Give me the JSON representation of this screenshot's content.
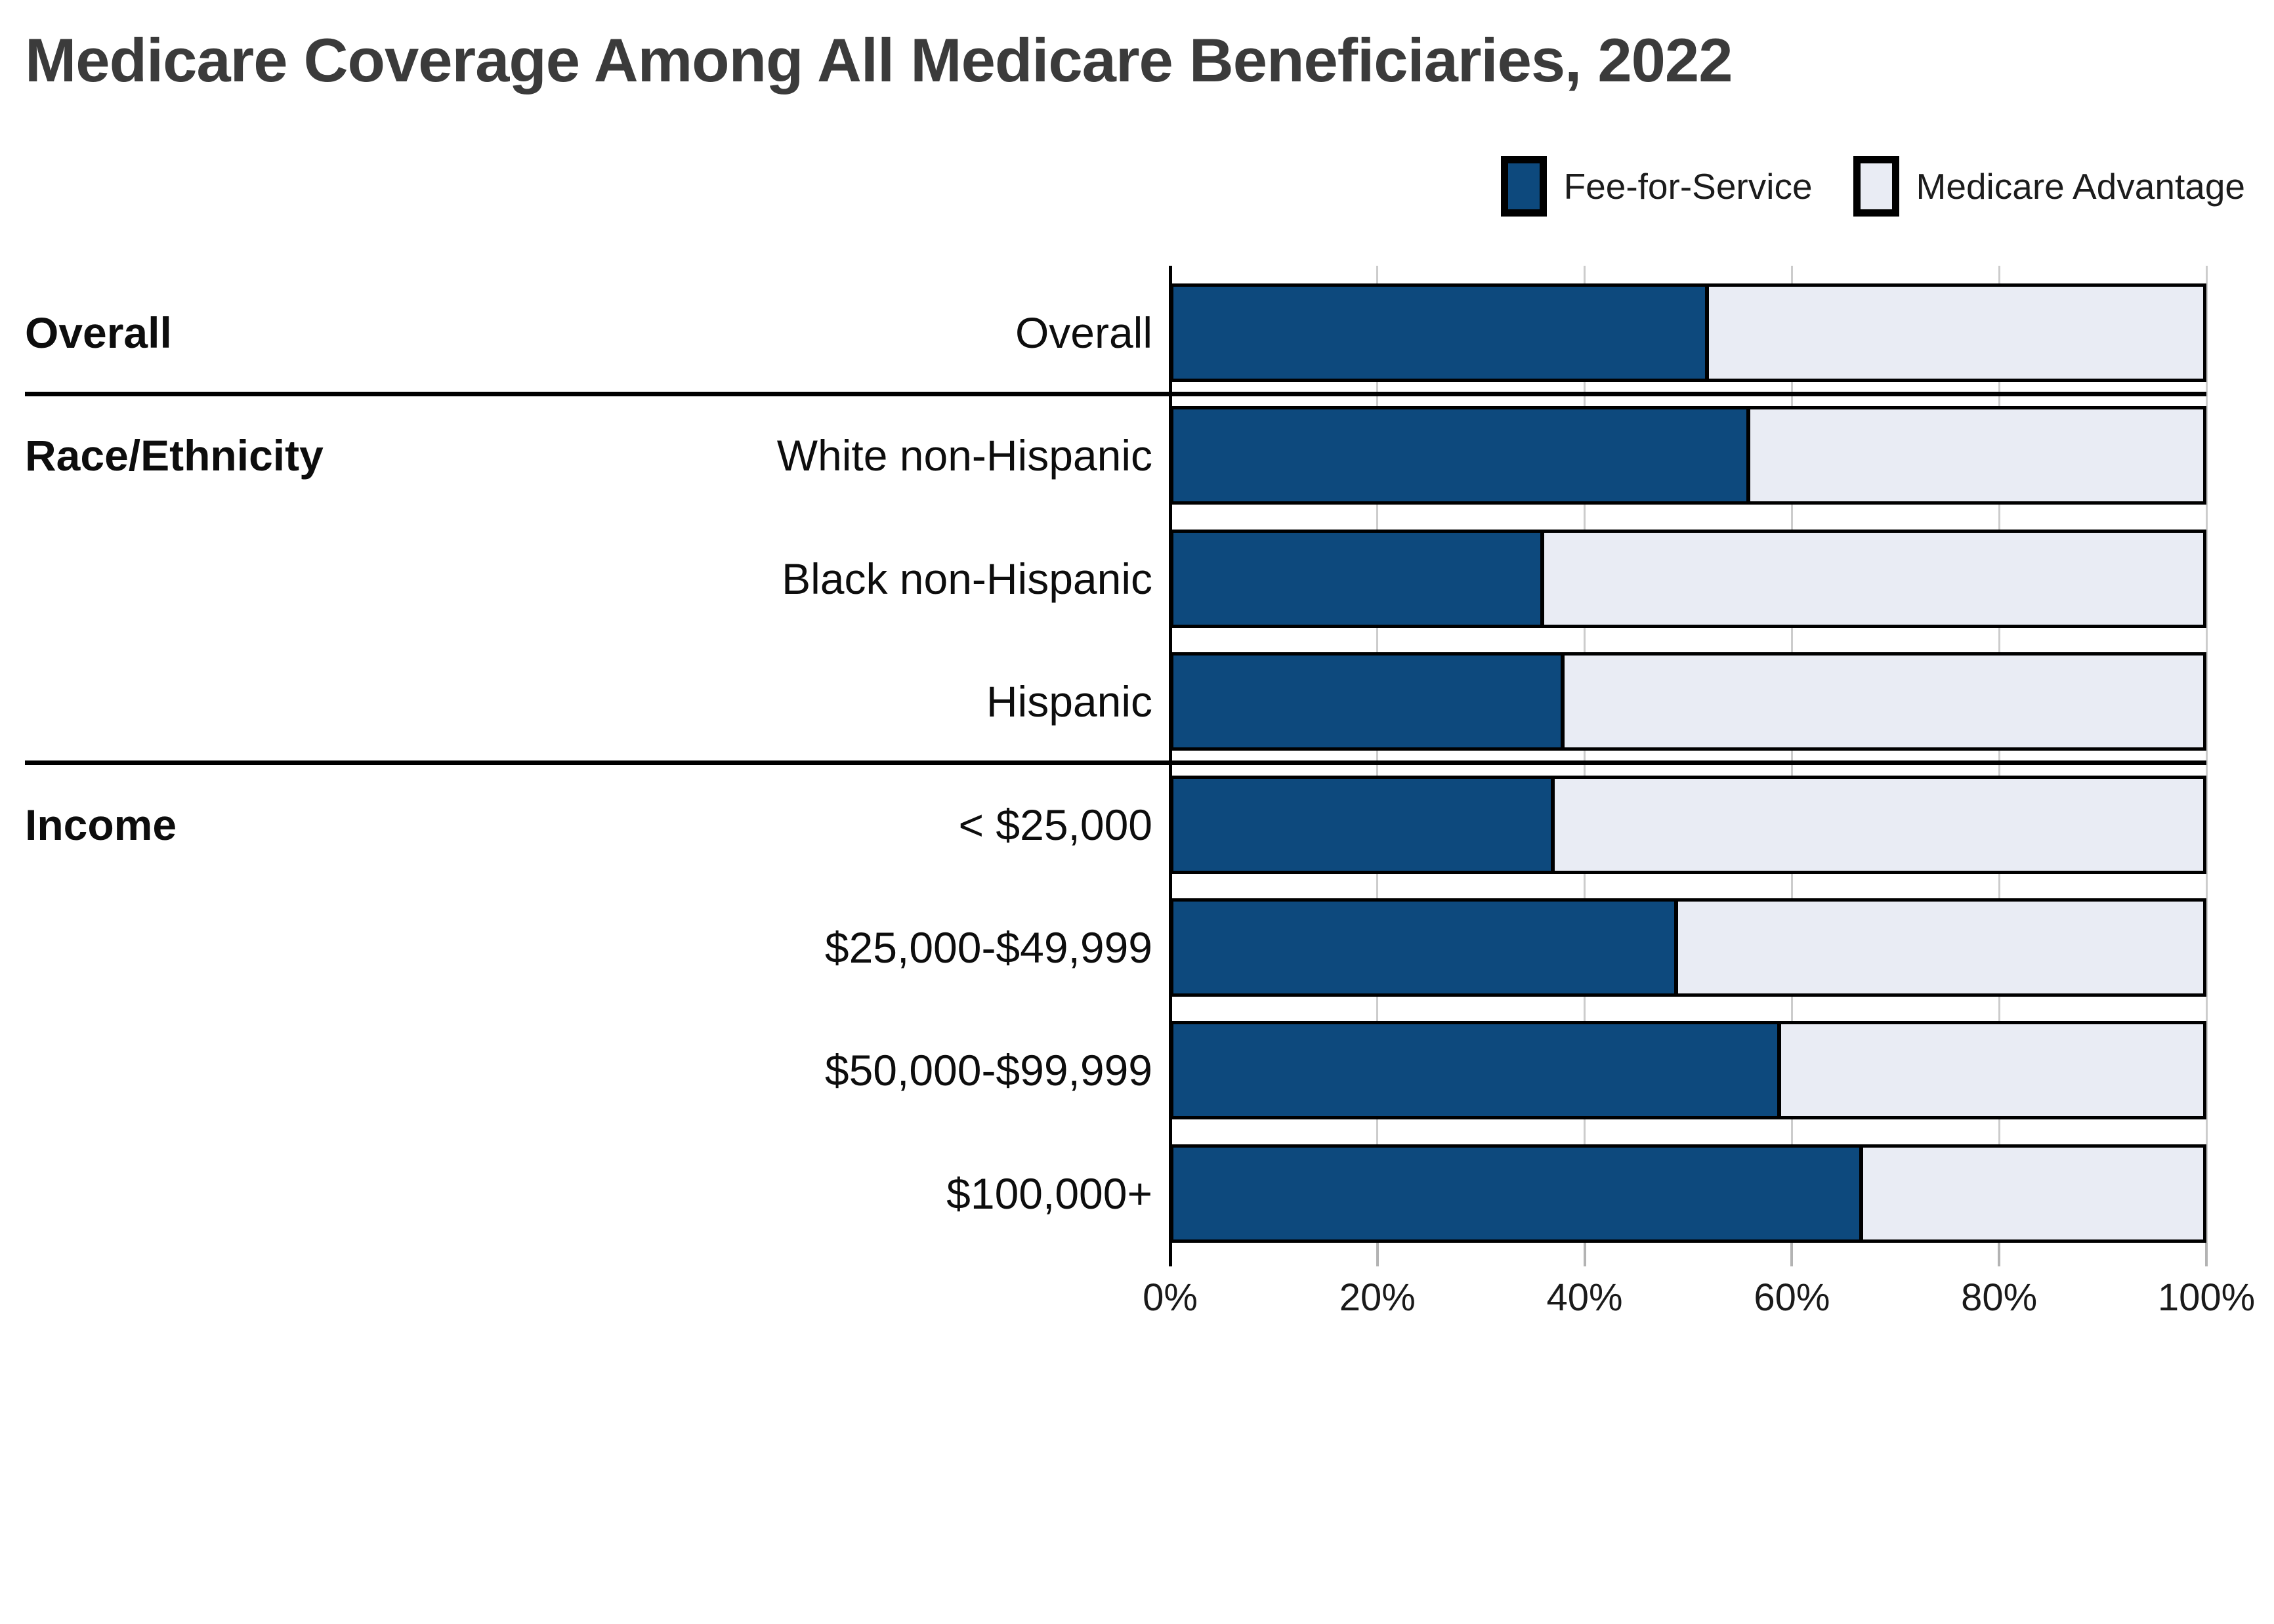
{
  "title": "Medicare Coverage Among All Medicare Beneficiaries, 2022",
  "legend": [
    {
      "label": "Fee-for-Service",
      "color": "#0d497d"
    },
    {
      "label": "Medicare Advantage",
      "color": "#e9ecf4"
    }
  ],
  "chart_data": {
    "type": "bar",
    "orientation": "horizontal",
    "stacked": true,
    "title": "Medicare Coverage Among All Medicare Beneficiaries, 2022",
    "unit": "percent",
    "xlim": [
      0,
      100
    ],
    "x_tick_labels": [
      "0%",
      "20%",
      "40%",
      "60%",
      "80%",
      "100%"
    ],
    "grid": true,
    "legend_position": "top-right",
    "series_names": [
      "Fee-for-Service",
      "Medicare Advantage"
    ],
    "colors": {
      "fee_for_service": "#0d497d",
      "medicare_advantage": "#e9ecf4",
      "bar_border": "#000000",
      "gridline": "#cccccc",
      "tick": "#b3b3b3"
    },
    "sections": [
      {
        "label": "Overall",
        "rows": [
          {
            "label": "Overall",
            "fee_for_service": 52,
            "medicare_advantage": 48
          }
        ]
      },
      {
        "label": "Race/Ethnicity",
        "rows": [
          {
            "label": "White non-Hispanic",
            "fee_for_service": 56,
            "medicare_advantage": 44
          },
          {
            "label": "Black non-Hispanic",
            "fee_for_service": 36,
            "medicare_advantage": 64
          },
          {
            "label": "Hispanic",
            "fee_for_service": 38,
            "medicare_advantage": 62
          }
        ]
      },
      {
        "label": "Income",
        "rows": [
          {
            "label": "< $25,000",
            "fee_for_service": 37,
            "medicare_advantage": 63
          },
          {
            "label": "$25,000-$49,999",
            "fee_for_service": 49,
            "medicare_advantage": 51
          },
          {
            "label": "$50,000-$99,999",
            "fee_for_service": 59,
            "medicare_advantage": 41
          },
          {
            "label": "$100,000+",
            "fee_for_service": 67,
            "medicare_advantage": 33
          }
        ]
      }
    ]
  }
}
